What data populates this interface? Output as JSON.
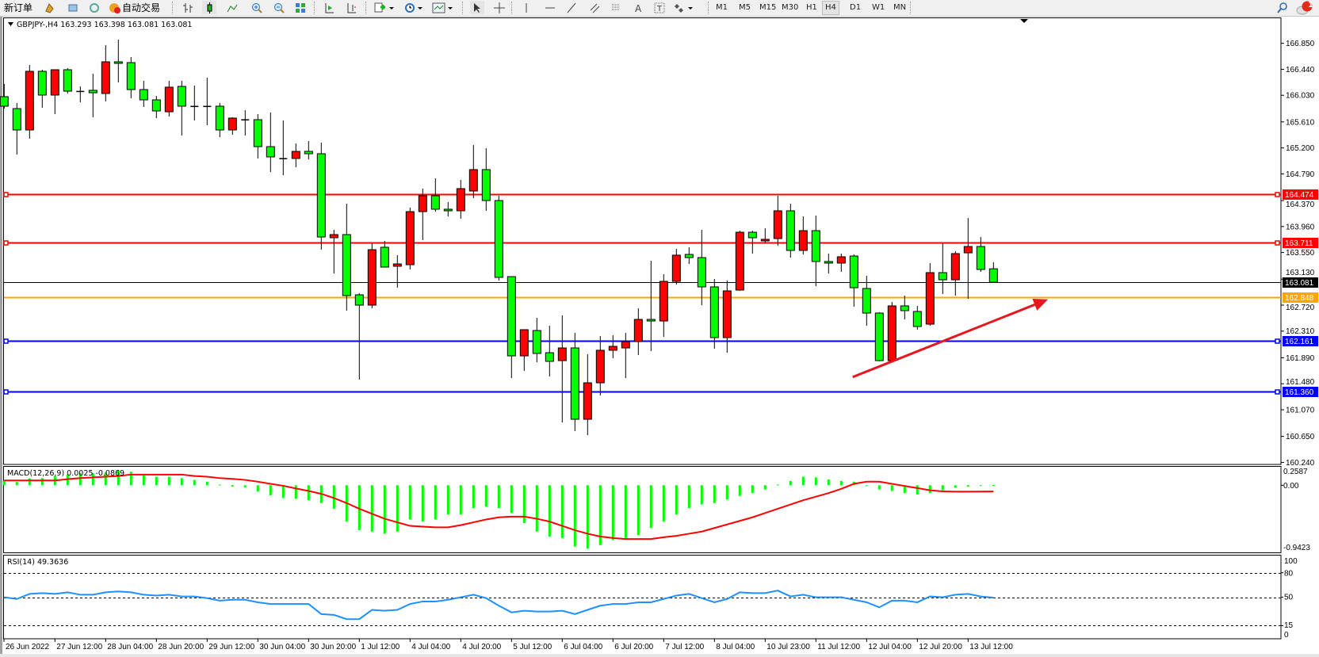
{
  "toolbar": {
    "new_order": "新订单",
    "auto_trading": "自动交易",
    "icons": [
      "new-order-icon",
      "gold-icon",
      "market-watch-icon",
      "signals-icon",
      "auto-trading-icon",
      "bar-chart-icon",
      "candlestick-icon",
      "line-chart-icon",
      "zoom-in-icon",
      "zoom-out-icon",
      "tile-windows-icon",
      "auto-scroll-icon",
      "chart-shift-icon",
      "indicators-icon",
      "periods-icon",
      "templates-icon",
      "cursor-icon",
      "crosshair-icon",
      "vertical-line-icon",
      "horizontal-line-icon",
      "trendline-icon",
      "equidistant-channel-icon",
      "fibonacci-icon",
      "text-icon",
      "text-label-icon",
      "arrows-icon",
      "search-icon",
      "notification-icon"
    ],
    "timeframes": [
      "M1",
      "M5",
      "M15",
      "M30",
      "H1",
      "H4",
      "D1",
      "W1",
      "MN"
    ],
    "active_timeframe": "H4",
    "notification_count": "1"
  },
  "chart": {
    "symbol_info": "GBPJPY-,H4  163.293 163.398 163.081 163.081",
    "colors": {
      "bull": "#FF0000",
      "bear": "#00FF00",
      "border": "#000000",
      "macd_hist": "#00FF00",
      "macd_signal": "#FF0000",
      "rsi": "#1E90FF",
      "arrow": "#E8141E"
    },
    "price_axis": [
      "166.850",
      "166.440",
      "166.030",
      "165.610",
      "165.200",
      "164.790",
      "164.370",
      "163.960",
      "163.550",
      "163.130",
      "162.720",
      "162.310",
      "161.890",
      "161.480",
      "161.070",
      "160.650",
      "160.240"
    ],
    "levels": [
      {
        "price": "164.474",
        "color": "#FF0000",
        "text_color": "#FFFFFF",
        "handles": true
      },
      {
        "price": "163.711",
        "color": "#FF0000",
        "text_color": "#FFFFFF",
        "handles": true
      },
      {
        "price": "163.081",
        "color": "#000000",
        "text_color": "#FFFFFF",
        "handles": false
      },
      {
        "price": "162.848",
        "color": "#FFA500",
        "text_color": "#FFFFFF",
        "handles": false
      },
      {
        "price": "162.161",
        "color": "#0000FF",
        "text_color": "#FFFFFF",
        "handles": true
      },
      {
        "price": "161.360",
        "color": "#0000FF",
        "text_color": "#FFFFFF",
        "handles": true
      }
    ],
    "candles": [
      [
        166.008,
        166.208,
        165.82,
        165.858
      ],
      [
        165.82,
        165.908,
        165.095,
        165.483
      ],
      [
        165.483,
        166.508,
        165.345,
        166.408
      ],
      [
        166.408,
        166.433,
        165.833,
        166.033
      ],
      [
        166.033,
        166.433,
        165.733,
        166.433
      ],
      [
        166.433,
        166.458,
        166.058,
        166.095
      ],
      [
        166.095,
        166.17,
        165.92,
        166.085
      ],
      [
        166.108,
        166.37,
        165.683,
        166.07
      ],
      [
        166.058,
        166.82,
        165.933,
        166.558
      ],
      [
        166.558,
        166.908,
        166.233,
        166.533
      ],
      [
        166.545,
        166.633,
        165.983,
        166.12
      ],
      [
        166.12,
        166.258,
        165.845,
        165.958
      ],
      [
        165.958,
        166.02,
        165.67,
        165.783
      ],
      [
        165.77,
        166.258,
        165.695,
        166.158
      ],
      [
        166.17,
        166.258,
        165.395,
        165.858
      ],
      [
        165.858,
        166.183,
        165.633,
        165.85
      ],
      [
        165.85,
        166.308,
        165.558,
        165.858
      ],
      [
        165.858,
        165.908,
        165.37,
        165.483
      ],
      [
        165.483,
        165.683,
        165.408,
        165.67
      ],
      [
        165.645,
        165.795,
        165.395,
        165.64
      ],
      [
        165.645,
        165.733,
        165.033,
        165.22
      ],
      [
        165.22,
        165.758,
        164.82,
        165.058
      ],
      [
        165.033,
        165.633,
        164.77,
        165.028
      ],
      [
        165.033,
        165.27,
        164.895,
        165.145
      ],
      [
        165.145,
        165.308,
        165.02,
        165.108
      ],
      [
        165.108,
        165.283,
        163.595,
        163.795
      ],
      [
        163.783,
        163.908,
        163.22,
        163.833
      ],
      [
        163.833,
        164.32,
        162.633,
        162.87
      ],
      [
        162.883,
        162.908,
        161.545,
        162.72
      ],
      [
        162.72,
        163.695,
        162.67,
        163.595
      ],
      [
        163.633,
        163.733,
        163.32,
        163.32
      ],
      [
        163.333,
        163.508,
        162.995,
        163.37
      ],
      [
        163.358,
        164.258,
        163.283,
        164.195
      ],
      [
        164.195,
        164.558,
        163.745,
        164.445
      ],
      [
        164.445,
        164.72,
        164.195,
        164.233
      ],
      [
        164.233,
        164.345,
        164.12,
        164.208
      ],
      [
        164.208,
        164.695,
        164.083,
        164.558
      ],
      [
        164.52,
        165.245,
        164.408,
        164.858
      ],
      [
        164.858,
        165.195,
        164.208,
        164.37
      ],
      [
        164.37,
        164.445,
        163.108,
        163.158
      ],
      [
        163.17,
        163.17,
        161.57,
        161.92
      ],
      [
        161.92,
        162.333,
        161.683,
        162.333
      ],
      [
        162.32,
        162.52,
        161.82,
        161.958
      ],
      [
        161.97,
        162.395,
        161.595,
        161.833
      ],
      [
        161.845,
        162.558,
        160.87,
        162.045
      ],
      [
        162.045,
        162.283,
        160.733,
        160.92
      ],
      [
        160.92,
        161.945,
        160.67,
        161.495
      ],
      [
        161.495,
        162.233,
        161.295,
        162.008
      ],
      [
        162.008,
        162.245,
        161.883,
        162.07
      ],
      [
        162.045,
        162.283,
        161.57,
        162.145
      ],
      [
        162.145,
        162.67,
        161.933,
        162.495
      ],
      [
        162.495,
        163.42,
        161.995,
        162.47
      ],
      [
        162.47,
        163.208,
        162.22,
        163.095
      ],
      [
        163.095,
        163.608,
        163.045,
        163.508
      ],
      [
        163.52,
        163.633,
        163.37,
        163.47
      ],
      [
        163.47,
        163.908,
        162.72,
        163.008
      ],
      [
        163.008,
        163.133,
        162.033,
        162.208
      ],
      [
        162.208,
        163.108,
        161.97,
        162.945
      ],
      [
        162.958,
        163.895,
        162.945,
        163.87
      ],
      [
        163.87,
        163.895,
        163.533,
        163.783
      ],
      [
        163.733,
        163.933,
        163.695,
        163.758
      ],
      [
        163.77,
        164.445,
        163.658,
        164.208
      ],
      [
        164.208,
        164.32,
        163.47,
        163.583
      ],
      [
        163.583,
        164.12,
        163.52,
        163.895
      ],
      [
        163.895,
        164.133,
        163.02,
        163.408
      ],
      [
        163.408,
        163.533,
        163.22,
        163.383
      ],
      [
        163.383,
        163.533,
        163.245,
        163.483
      ],
      [
        163.495,
        163.52,
        162.695,
        162.995
      ],
      [
        162.983,
        163.183,
        162.395,
        162.595
      ],
      [
        162.595,
        162.608,
        161.833,
        161.845
      ],
      [
        161.845,
        162.77,
        161.82,
        162.708
      ],
      [
        162.708,
        162.87,
        162.495,
        162.633
      ],
      [
        162.62,
        162.708,
        162.333,
        162.383
      ],
      [
        162.42,
        163.383,
        162.395,
        163.233
      ],
      [
        163.233,
        163.695,
        162.895,
        163.12
      ],
      [
        163.12,
        163.57,
        162.87,
        163.533
      ],
      [
        163.545,
        164.095,
        162.82,
        163.645
      ],
      [
        163.645,
        163.795,
        163.245,
        163.283
      ],
      [
        163.293,
        163.398,
        163.081,
        163.081
      ]
    ],
    "time_labels": [
      "26 Jun 2022",
      "27 Jun 12:00",
      "28 Jun 04:00",
      "28 Jun 20:00",
      "29 Jun 12:00",
      "30 Jun 04:00",
      "30 Jun 20:00",
      "1 Jul 12:00",
      "4 Jul 04:00",
      "4 Jul 20:00",
      "5 Jul 12:00",
      "6 Jul 04:00",
      "6 Jul 20:00",
      "7 Jul 12:00",
      "8 Jul 04:00",
      "10 Jul 23:00",
      "11 Jul 12:00",
      "12 Jul 04:00",
      "12 Jul 20:00",
      "13 Jul 12:00"
    ],
    "arrow": {
      "from": {
        "candle": 66.9,
        "price": 161.586
      },
      "to": {
        "candle": 82.3,
        "price": 162.811
      }
    }
  },
  "macd": {
    "label": "MACD(12,26,9) 0.0025 -0.0869",
    "axis": [
      "0.2587",
      "0.00",
      "-0.9423"
    ],
    "range": [
      -0.9423,
      0.2587
    ],
    "histogram": [
      0.06,
      0.045,
      0.097,
      0.1,
      0.13,
      0.15,
      0.17,
      0.17,
      0.18,
      0.21,
      0.19,
      0.14,
      0.12,
      0.12,
      0.1,
      0.075,
      0.05,
      0.008,
      -0.02,
      -0.03,
      -0.09,
      -0.14,
      -0.18,
      -0.19,
      -0.21,
      -0.25,
      -0.33,
      -0.51,
      -0.63,
      -0.65,
      -0.68,
      -0.65,
      -0.48,
      -0.51,
      -0.48,
      -0.41,
      -0.41,
      -0.32,
      -0.3,
      -0.32,
      -0.39,
      -0.53,
      -0.65,
      -0.72,
      -0.74,
      -0.86,
      -0.89,
      -0.84,
      -0.77,
      -0.74,
      -0.7,
      -0.6,
      -0.51,
      -0.41,
      -0.32,
      -0.27,
      -0.25,
      -0.2,
      -0.15,
      -0.11,
      -0.06,
      0.01,
      0.06,
      0.12,
      0.11,
      0.08,
      0.06,
      0.05,
      -0.01,
      -0.06,
      -0.08,
      -0.11,
      -0.13,
      -0.11,
      -0.07,
      -0.035,
      -0.02,
      -0.01,
      0.0025
    ],
    "signal": [
      0.067,
      0.067,
      0.067,
      0.067,
      0.067,
      0.085,
      0.1,
      0.11,
      0.12,
      0.13,
      0.15,
      0.15,
      0.15,
      0.15,
      0.15,
      0.13,
      0.12,
      0.1,
      0.09,
      0.075,
      0.05,
      0.02,
      -0.007,
      -0.045,
      -0.08,
      -0.12,
      -0.18,
      -0.25,
      -0.33,
      -0.4,
      -0.47,
      -0.52,
      -0.57,
      -0.58,
      -0.59,
      -0.59,
      -0.56,
      -0.52,
      -0.48,
      -0.45,
      -0.44,
      -0.44,
      -0.47,
      -0.51,
      -0.57,
      -0.63,
      -0.68,
      -0.72,
      -0.74,
      -0.755,
      -0.755,
      -0.755,
      -0.73,
      -0.71,
      -0.68,
      -0.65,
      -0.6,
      -0.55,
      -0.5,
      -0.45,
      -0.39,
      -0.33,
      -0.27,
      -0.21,
      -0.16,
      -0.11,
      -0.05,
      0.02,
      0.05,
      0.05,
      0.02,
      -0.01,
      -0.04,
      -0.07,
      -0.085,
      -0.09,
      -0.09,
      -0.088,
      -0.0869
    ]
  },
  "rsi": {
    "label": "RSI(14) 49.3636",
    "axis": [
      "100",
      "80",
      "50",
      "15",
      "0"
    ],
    "levels": [
      80,
      50,
      15
    ],
    "values": [
      49.9,
      47.8,
      54.0,
      55.0,
      54.0,
      56.0,
      53.0,
      53.0,
      56.0,
      57.1,
      56.0,
      53.0,
      52.0,
      53.0,
      50.9,
      50.9,
      48.8,
      45.7,
      46.8,
      46.8,
      43.7,
      41.6,
      41.6,
      41.6,
      41.6,
      29.2,
      28.2,
      23.0,
      23.0,
      34.4,
      33.3,
      34.4,
      41.6,
      44.7,
      44.7,
      46.8,
      49.9,
      53.0,
      48.8,
      39.5,
      31.3,
      33.3,
      32.3,
      32.3,
      33.3,
      29.2,
      34.4,
      39.5,
      41.6,
      41.6,
      43.7,
      43.7,
      47.8,
      52.0,
      54.0,
      48.8,
      43.7,
      47.8,
      56.0,
      55.0,
      55.0,
      58.1,
      50.9,
      53.0,
      49.9,
      49.9,
      49.9,
      46.8,
      43.7,
      37.5,
      45.7,
      45.7,
      43.7,
      50.9,
      49.9,
      53.0,
      54.0,
      50.9,
      49.36
    ]
  }
}
